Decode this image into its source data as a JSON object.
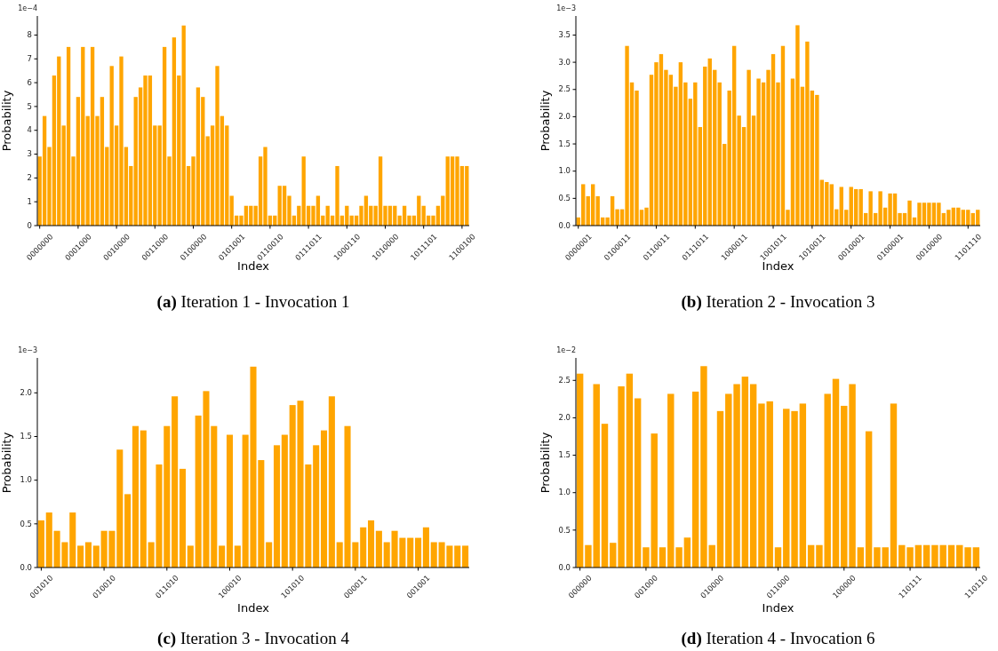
{
  "chart_data": [
    {
      "type": "bar",
      "title": "(a) Iteration 1 - Invocation 1",
      "xlabel": "Index",
      "ylabel": "Probability",
      "annotations": [
        "1e−4"
      ],
      "color": "#ffa500",
      "ylim": [
        0,
        8.8
      ],
      "yticks": [
        0,
        1,
        2,
        3,
        4,
        5,
        6,
        7,
        8
      ],
      "grid": false,
      "legend": false,
      "categories": [
        "0000000",
        null,
        null,
        null,
        null,
        null,
        null,
        null,
        "0001000",
        null,
        null,
        null,
        null,
        null,
        null,
        null,
        "0010000",
        null,
        null,
        null,
        null,
        null,
        null,
        null,
        "0011000",
        null,
        null,
        null,
        null,
        null,
        null,
        null,
        "0100000",
        null,
        null,
        null,
        null,
        null,
        null,
        null,
        "0101001",
        null,
        null,
        null,
        null,
        null,
        null,
        null,
        "0110010",
        null,
        null,
        null,
        null,
        null,
        null,
        null,
        "0111011",
        null,
        null,
        null,
        null,
        null,
        null,
        null,
        "1000110",
        null,
        null,
        null,
        null,
        null,
        null,
        null,
        "1010000",
        null,
        null,
        null,
        null,
        null,
        null,
        null,
        "1011101",
        null,
        null,
        null,
        null,
        null,
        null,
        null,
        "1100100",
        null
      ],
      "values": [
        2.9,
        4.6,
        3.3,
        6.3,
        7.1,
        4.2,
        7.5,
        2.9,
        5.4,
        7.5,
        4.6,
        7.5,
        4.6,
        5.4,
        3.3,
        6.7,
        4.2,
        7.1,
        3.3,
        2.5,
        5.4,
        5.8,
        6.3,
        6.3,
        4.2,
        4.2,
        7.5,
        2.9,
        7.9,
        6.3,
        8.4,
        2.5,
        2.9,
        5.8,
        5.4,
        3.75,
        4.2,
        6.7,
        4.6,
        4.2,
        1.25,
        0.42,
        0.42,
        0.83,
        0.83,
        0.83,
        2.9,
        3.3,
        0.42,
        0.42,
        1.67,
        1.67,
        1.25,
        0.42,
        0.83,
        2.9,
        0.83,
        0.83,
        1.25,
        0.42,
        0.83,
        0.42,
        2.5,
        0.42,
        0.83,
        0.42,
        0.42,
        0.83,
        1.25,
        0.83,
        0.83,
        2.9,
        0.83,
        0.83,
        0.83,
        0.42,
        0.83,
        0.42,
        0.42,
        1.25,
        0.83,
        0.42,
        0.42,
        0.83,
        1.25,
        2.9,
        2.9,
        2.9,
        2.5,
        2.5
      ]
    },
    {
      "type": "bar",
      "title": "(b) Iteration 2 - Invocation 3",
      "xlabel": "Index",
      "ylabel": "Probability",
      "annotations": [
        "1e−3"
      ],
      "color": "#ffa500",
      "ylim": [
        0,
        3.85
      ],
      "yticks": [
        {
          "value": 0,
          "label": "0.0"
        },
        {
          "value": 0.5,
          "label": "0.5"
        },
        {
          "value": 1,
          "label": "1.0"
        },
        {
          "value": 1.5,
          "label": "1.5"
        },
        {
          "value": 2,
          "label": "2.0"
        },
        {
          "value": 2.5,
          "label": "2.5"
        },
        {
          "value": 3,
          "label": "3.0"
        },
        {
          "value": 3.5,
          "label": "3.5"
        }
      ],
      "grid": false,
      "legend": false,
      "categories": [
        "0000001",
        null,
        null,
        null,
        null,
        null,
        null,
        null,
        "0100011",
        null,
        null,
        null,
        null,
        null,
        null,
        null,
        "0110011",
        null,
        null,
        null,
        null,
        null,
        null,
        null,
        "0111011",
        null,
        null,
        null,
        null,
        null,
        null,
        null,
        "1000011",
        null,
        null,
        null,
        null,
        null,
        null,
        null,
        "1001011",
        null,
        null,
        null,
        null,
        null,
        null,
        null,
        "1010011",
        null,
        null,
        null,
        null,
        null,
        null,
        null,
        "0010001",
        null,
        null,
        null,
        null,
        null,
        null,
        null,
        "0100001",
        null,
        null,
        null,
        null,
        null,
        null,
        null,
        "0010000",
        null,
        null,
        null,
        null,
        null,
        null,
        null,
        "1101110",
        null,
        null
      ],
      "values": [
        0.15,
        0.76,
        0.54,
        0.76,
        0.54,
        0.15,
        0.15,
        0.54,
        0.3,
        0.3,
        3.3,
        2.63,
        2.48,
        0.29,
        0.33,
        2.77,
        3.0,
        3.15,
        2.86,
        2.77,
        2.55,
        3.0,
        2.63,
        2.33,
        2.63,
        1.81,
        2.92,
        3.07,
        2.86,
        2.63,
        1.5,
        2.48,
        3.3,
        2.02,
        1.81,
        2.86,
        2.02,
        2.7,
        2.63,
        2.86,
        3.15,
        2.63,
        3.3,
        0.29,
        2.7,
        3.68,
        2.55,
        3.38,
        2.48,
        2.4,
        0.84,
        0.8,
        0.76,
        0.3,
        0.71,
        0.29,
        0.71,
        0.67,
        0.67,
        0.23,
        0.63,
        0.23,
        0.63,
        0.33,
        0.59,
        0.59,
        0.23,
        0.23,
        0.46,
        0.15,
        0.42,
        0.42,
        0.42,
        0.42,
        0.42,
        0.23,
        0.29,
        0.33,
        0.33,
        0.29,
        0.29,
        0.23,
        0.29
      ]
    },
    {
      "type": "bar",
      "title": "(c) Iteration 3 - Invocation 4",
      "xlabel": "Index",
      "ylabel": "Probability",
      "annotations": [
        "1e−3"
      ],
      "color": "#ffa500",
      "ylim": [
        0,
        2.4
      ],
      "yticks": [
        {
          "value": 0,
          "label": "0.0"
        },
        {
          "value": 0.5,
          "label": "0.5"
        },
        {
          "value": 1,
          "label": "1.0"
        },
        {
          "value": 1.5,
          "label": "1.5"
        },
        {
          "value": 2,
          "label": "2.0"
        }
      ],
      "grid": false,
      "legend": false,
      "categories": [
        "001010",
        null,
        null,
        null,
        null,
        null,
        null,
        null,
        "010010",
        null,
        null,
        null,
        null,
        null,
        null,
        null,
        "011010",
        null,
        null,
        null,
        null,
        null,
        null,
        null,
        "100010",
        null,
        null,
        null,
        null,
        null,
        null,
        null,
        "101010",
        null,
        null,
        null,
        null,
        null,
        null,
        null,
        "000011",
        null,
        null,
        null,
        null,
        null,
        null,
        null,
        "001001",
        null,
        null,
        null,
        null,
        null,
        null
      ],
      "values": [
        0.54,
        0.63,
        0.42,
        0.29,
        0.63,
        0.25,
        0.29,
        0.25,
        0.42,
        0.42,
        1.35,
        0.84,
        1.62,
        1.57,
        0.29,
        1.18,
        1.62,
        1.96,
        1.13,
        0.25,
        1.74,
        2.02,
        1.62,
        0.25,
        1.52,
        0.25,
        1.52,
        2.3,
        1.23,
        0.29,
        1.4,
        1.52,
        1.86,
        1.91,
        1.18,
        1.4,
        1.57,
        1.96,
        0.29,
        1.62,
        0.29,
        0.46,
        0.54,
        0.42,
        0.29,
        0.42,
        0.34,
        0.34,
        0.34,
        0.46,
        0.29,
        0.29,
        0.25,
        0.25,
        0.25
      ]
    },
    {
      "type": "bar",
      "title": "(d) Iteration 4 - Invocation 6",
      "xlabel": "Index",
      "ylabel": "Probability",
      "annotations": [
        "1e−2"
      ],
      "color": "#ffa500",
      "ylim": [
        0,
        2.8
      ],
      "yticks": [
        {
          "value": 0,
          "label": "0.0"
        },
        {
          "value": 0.5,
          "label": "0.5"
        },
        {
          "value": 1,
          "label": "1.0"
        },
        {
          "value": 1.5,
          "label": "1.5"
        },
        {
          "value": 2,
          "label": "2.0"
        },
        {
          "value": 2.5,
          "label": "2.5"
        }
      ],
      "grid": false,
      "legend": false,
      "categories": [
        "000000",
        null,
        null,
        null,
        null,
        null,
        null,
        null,
        "001000",
        null,
        null,
        null,
        null,
        null,
        null,
        null,
        "010000",
        null,
        null,
        null,
        null,
        null,
        null,
        null,
        "011000",
        null,
        null,
        null,
        null,
        null,
        null,
        null,
        "100000",
        null,
        null,
        null,
        null,
        null,
        null,
        null,
        "110111",
        null,
        null,
        null,
        null,
        null,
        null,
        null,
        "110110"
      ],
      "values": [
        2.59,
        0.3,
        2.45,
        1.92,
        0.33,
        2.42,
        2.59,
        2.26,
        0.27,
        1.79,
        0.27,
        2.32,
        0.27,
        0.4,
        2.35,
        2.69,
        0.3,
        2.09,
        2.32,
        2.45,
        2.55,
        2.45,
        2.19,
        2.22,
        0.27,
        2.12,
        2.09,
        2.19,
        0.3,
        0.3,
        2.32,
        2.52,
        2.16,
        2.45,
        0.27,
        1.82,
        0.27,
        0.27,
        2.19,
        0.3,
        0.27,
        0.3,
        0.3,
        0.3,
        0.3,
        0.3,
        0.3,
        0.27,
        0.27
      ]
    }
  ]
}
